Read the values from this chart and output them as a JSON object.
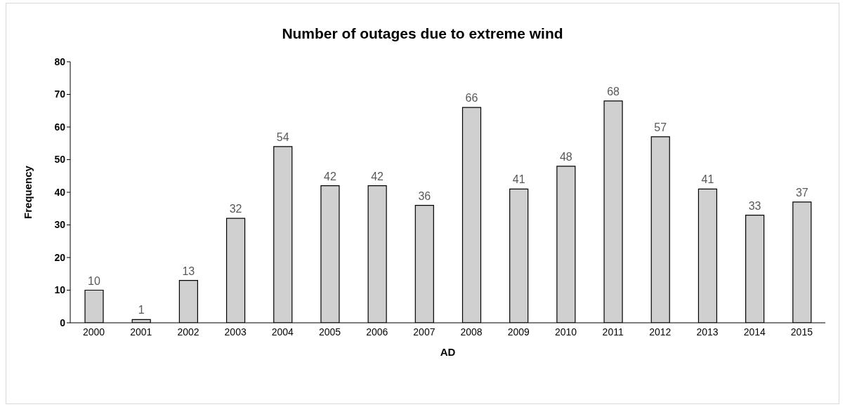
{
  "chart_data": {
    "type": "bar",
    "title": "Number of outages due to extreme wind",
    "xlabel": "AD",
    "ylabel": "Frequency",
    "categories": [
      "2000",
      "2001",
      "2002",
      "2003",
      "2004",
      "2005",
      "2006",
      "2007",
      "2008",
      "2009",
      "2010",
      "2011",
      "2012",
      "2013",
      "2014",
      "2015"
    ],
    "values": [
      10,
      1,
      13,
      32,
      54,
      42,
      42,
      36,
      66,
      41,
      48,
      68,
      57,
      41,
      33,
      37
    ],
    "color": "#d0d0d0",
    "ylim": [
      0,
      80
    ],
    "yticks": [
      0,
      10,
      20,
      30,
      40,
      50,
      60,
      70,
      80
    ],
    "data_labels": true
  }
}
